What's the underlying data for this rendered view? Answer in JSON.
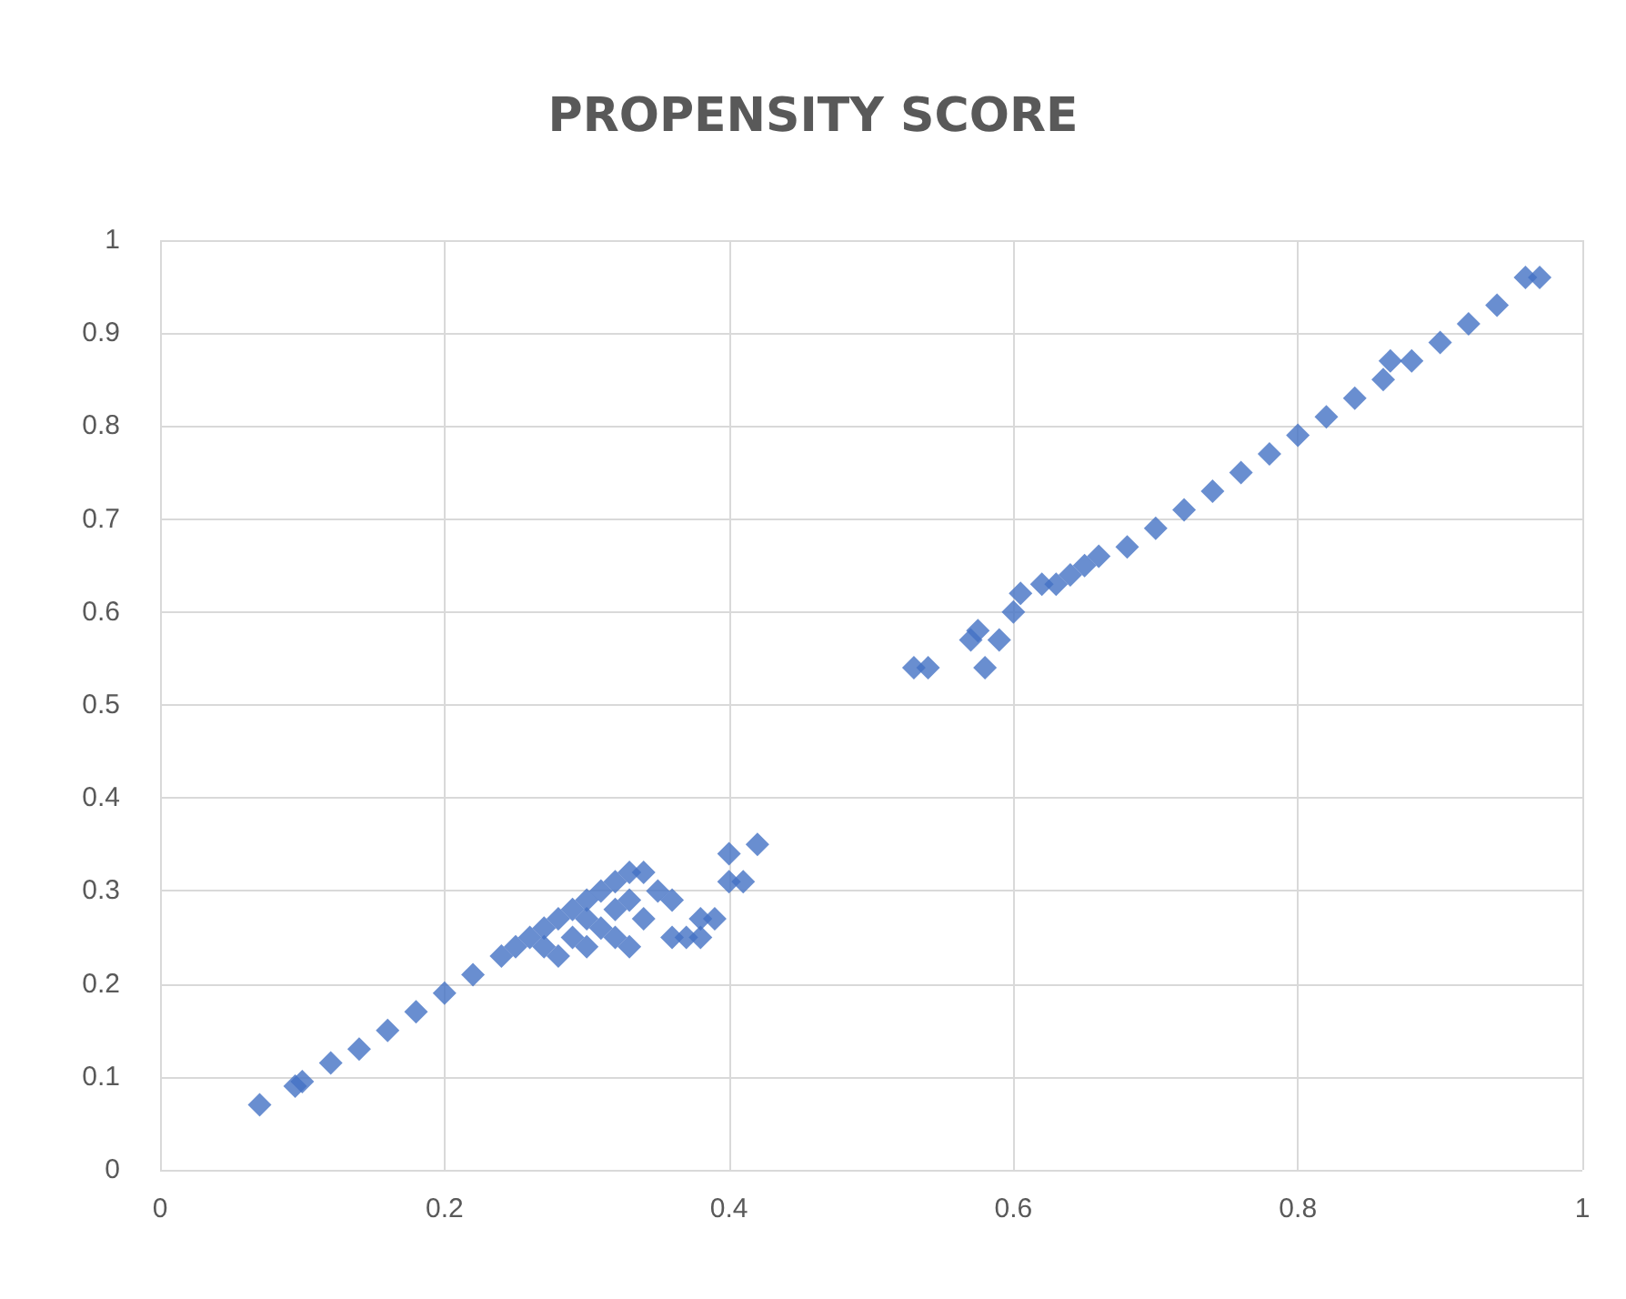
{
  "chart_data": {
    "type": "scatter",
    "title": "PROPENSITY SCORE",
    "x": [
      0.07,
      0.095,
      0.1,
      0.12,
      0.14,
      0.16,
      0.18,
      0.2,
      0.22,
      0.24,
      0.25,
      0.26,
      0.27,
      0.28,
      0.29,
      0.3,
      0.31,
      0.32,
      0.33,
      0.27,
      0.28,
      0.29,
      0.3,
      0.31,
      0.32,
      0.33,
      0.34,
      0.35,
      0.36,
      0.36,
      0.37,
      0.38,
      0.38,
      0.39,
      0.4,
      0.4,
      0.41,
      0.42,
      0.32,
      0.3,
      0.34,
      0.33,
      0.53,
      0.54,
      0.57,
      0.575,
      0.58,
      0.59,
      0.6,
      0.605,
      0.62,
      0.63,
      0.64,
      0.65,
      0.66,
      0.68,
      0.7,
      0.72,
      0.74,
      0.76,
      0.78,
      0.8,
      0.82,
      0.84,
      0.86,
      0.865,
      0.88,
      0.9,
      0.92,
      0.94,
      0.96,
      0.97
    ],
    "values": [
      0.07,
      0.09,
      0.095,
      0.115,
      0.13,
      0.15,
      0.17,
      0.19,
      0.21,
      0.23,
      0.24,
      0.25,
      0.26,
      0.27,
      0.28,
      0.29,
      0.3,
      0.31,
      0.32,
      0.24,
      0.23,
      0.25,
      0.24,
      0.26,
      0.25,
      0.24,
      0.32,
      0.3,
      0.29,
      0.25,
      0.25,
      0.25,
      0.27,
      0.27,
      0.34,
      0.31,
      0.31,
      0.35,
      0.28,
      0.27,
      0.27,
      0.29,
      0.54,
      0.54,
      0.57,
      0.58,
      0.54,
      0.57,
      0.6,
      0.62,
      0.63,
      0.63,
      0.64,
      0.65,
      0.66,
      0.67,
      0.69,
      0.71,
      0.73,
      0.75,
      0.77,
      0.79,
      0.81,
      0.83,
      0.85,
      0.87,
      0.87,
      0.89,
      0.91,
      0.93,
      0.96,
      0.96
    ],
    "color": "#4472c4",
    "marker": "diamond",
    "xlim": [
      0,
      1
    ],
    "xticks": [
      0,
      {
        "value": 0.2,
        "label": "0.2"
      },
      {
        "value": 0.4,
        "label": "0.4"
      },
      {
        "value": 0.6,
        "label": "0.6"
      },
      {
        "value": 0.8,
        "label": "0.8"
      },
      1
    ],
    "ylim": [
      0,
      1
    ],
    "yticks": [
      0,
      0.1,
      0.2,
      0.3,
      0.4,
      0.5,
      0.6,
      0.7,
      0.8,
      0.9,
      1
    ],
    "grid": true
  }
}
